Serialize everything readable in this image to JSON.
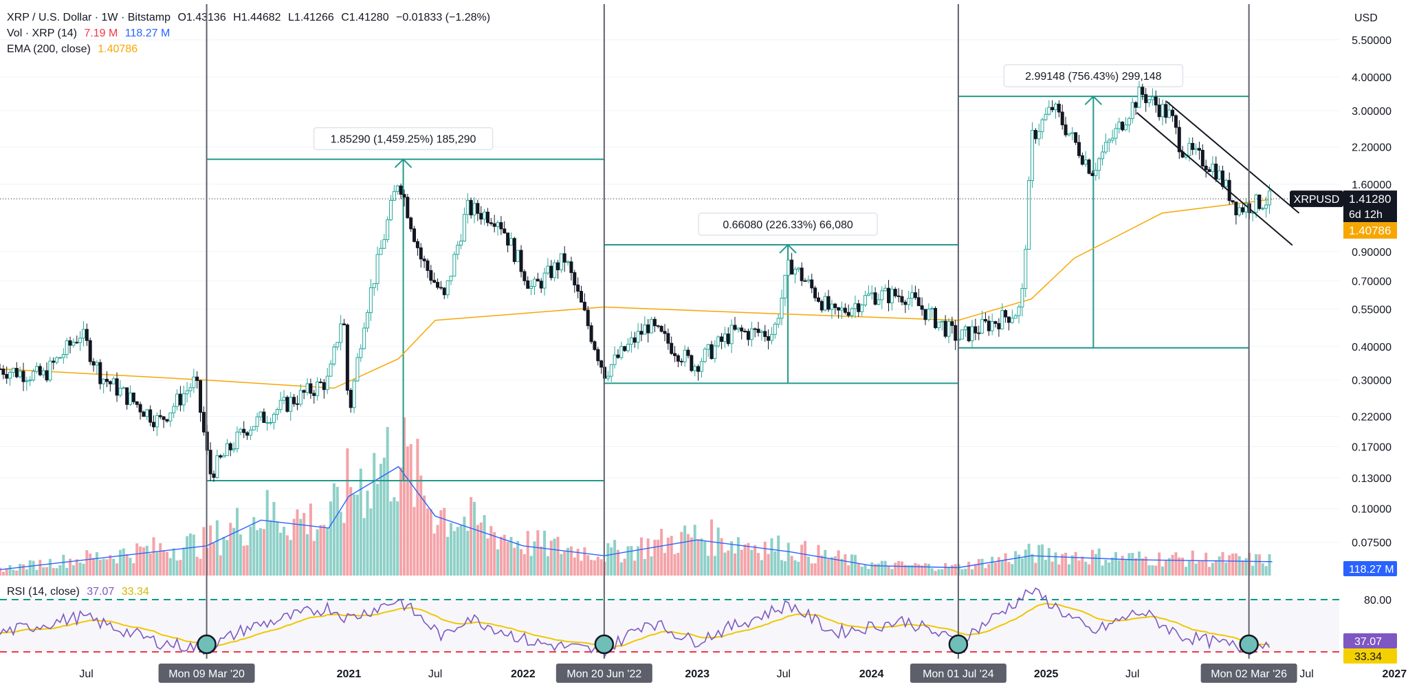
{
  "header": {
    "symbol": "XRP / U.S. Dollar · 1W · Bitstamp",
    "open": "O1.43136",
    "high": "H1.44682",
    "low": "L1.41266",
    "close": "C1.41280",
    "change": "−0.01833 (−1.28%)",
    "vol_label": "Vol · XRP (14)",
    "vol_value_1": "7.19 M",
    "vol_value_2": "118.27 M",
    "ema_label": "EMA (200, close)",
    "ema_value": "1.40786",
    "currency": "USD"
  },
  "rsi_legend": {
    "label": "RSI (14, close)",
    "value": "37.07",
    "ma_value": "33.34"
  },
  "price_tags": {
    "symbol_tag": "XRPUSD",
    "last_price": "1.41280",
    "countdown": "6d 12h",
    "ema_price": "1.40786",
    "volume_tag": "118.27 M",
    "rsi_tag": "37.07",
    "rsi_ma_tag": "33.34"
  },
  "colors": {
    "up": "#26a69a",
    "down": "#131722",
    "measure": "#22998a",
    "ema": "#f7a600",
    "volume_ma": "#2962ff",
    "rsi": "#7e57c2",
    "rsi_ma": "#f0c600",
    "overbought": "#089981",
    "oversold": "#f23645"
  },
  "chart_data": {
    "type": "candlestick",
    "y_scale": "log",
    "y_ticks": [
      "5.50000",
      "4.00000",
      "3.00000",
      "2.20000",
      "1.60000",
      "0.90000",
      "0.70000",
      "0.55000",
      "0.40000",
      "0.30000",
      "0.22000",
      "0.17000",
      "0.13000",
      "0.10000",
      "0.07500"
    ],
    "x_ticks": [
      {
        "label": "Jul",
        "date": "2019-07"
      },
      {
        "label": "2021",
        "date": "2021-01",
        "bold": true
      },
      {
        "label": "Jul",
        "date": "2021-07"
      },
      {
        "label": "2022",
        "date": "2022-01",
        "bold": true
      },
      {
        "label": "2023",
        "date": "2023-01",
        "bold": true
      },
      {
        "label": "Jul",
        "date": "2023-07"
      },
      {
        "label": "2024",
        "date": "2024-01",
        "bold": true
      },
      {
        "label": "2025",
        "date": "2025-01",
        "bold": true
      },
      {
        "label": "Jul",
        "date": "2025-07"
      },
      {
        "label": "Jul",
        "date": "2026-07"
      },
      {
        "label": "2027",
        "date": "2027-01",
        "bold": true
      }
    ],
    "vertical_markers": [
      {
        "label": "Mon 09 Mar '20",
        "date": "2020-03-09"
      },
      {
        "label": "Mon 20 Jun '22",
        "date": "2022-06-20"
      },
      {
        "label": "Mon 01 Jul '24",
        "date": "2024-07-01"
      },
      {
        "label": "Mon 02 Mar '26",
        "date": "2026-03-02"
      }
    ],
    "measurements": [
      {
        "label": "1.85290 (1,459.25%) 185,290",
        "from_date": "2020-03-09",
        "to_date": "2022-06-20",
        "low": 0.127,
        "high": 1.98
      },
      {
        "label": "0.66080 (226.33%) 66,080",
        "from_date": "2022-06-20",
        "to_date": "2024-07-01",
        "low": 0.292,
        "high": 0.953
      },
      {
        "label": "2.99148 (756.43%) 299,148",
        "from_date": "2024-07-01",
        "to_date": "2026-03-02",
        "low": 0.395,
        "high": 3.39
      }
    ],
    "channel": [
      {
        "from": {
          "date": "2025-07-10",
          "price": 2.95
        },
        "to": {
          "date": "2026-06-01",
          "price": 0.95
        }
      },
      {
        "from": {
          "date": "2025-09-10",
          "price": 3.25
        },
        "to": {
          "date": "2026-06-15",
          "price": 1.25
        }
      }
    ],
    "last_price": 1.4128,
    "ema_last": 1.40786,
    "price_path": [
      [
        "2019-01-01",
        0.33
      ],
      [
        "2019-04-01",
        0.31
      ],
      [
        "2019-06-20",
        0.45
      ],
      [
        "2019-08-01",
        0.31
      ],
      [
        "2019-12-01",
        0.21
      ],
      [
        "2020-02-15",
        0.3
      ],
      [
        "2020-03-16",
        0.135
      ],
      [
        "2020-06-01",
        0.2
      ],
      [
        "2020-09-01",
        0.25
      ],
      [
        "2020-11-20",
        0.3
      ],
      [
        "2020-12-20",
        0.55
      ],
      [
        "2021-01-01",
        0.22
      ],
      [
        "2021-02-01",
        0.5
      ],
      [
        "2021-04-15",
        1.7
      ],
      [
        "2021-06-01",
        0.85
      ],
      [
        "2021-07-20",
        0.6
      ],
      [
        "2021-09-05",
        1.3
      ],
      [
        "2021-11-10",
        1.2
      ],
      [
        "2022-01-20",
        0.65
      ],
      [
        "2022-03-30",
        0.85
      ],
      [
        "2022-06-20",
        0.32
      ],
      [
        "2022-09-20",
        0.48
      ],
      [
        "2022-12-25",
        0.34
      ],
      [
        "2023-03-15",
        0.45
      ],
      [
        "2023-06-10",
        0.45
      ],
      [
        "2023-07-14",
        0.82
      ],
      [
        "2023-10-15",
        0.52
      ],
      [
        "2023-12-31",
        0.62
      ],
      [
        "2024-03-12",
        0.62
      ],
      [
        "2024-07-01",
        0.43
      ],
      [
        "2024-11-10",
        0.55
      ],
      [
        "2024-12-03",
        2.4
      ],
      [
        "2025-01-15",
        3.1
      ],
      [
        "2025-04-07",
        1.8
      ],
      [
        "2025-07-18",
        3.5
      ],
      [
        "2025-09-20",
        2.85
      ],
      [
        "2025-10-10",
        2.2
      ],
      [
        "2025-12-20",
        1.85
      ],
      [
        "2026-02-06",
        1.3
      ],
      [
        "2026-04-20",
        1.41
      ]
    ],
    "ema_path": [
      [
        "2019-01-01",
        0.33
      ],
      [
        "2020-03-09",
        0.3
      ],
      [
        "2020-12-01",
        0.28
      ],
      [
        "2021-04-15",
        0.36
      ],
      [
        "2021-07-01",
        0.5
      ],
      [
        "2022-06-20",
        0.56
      ],
      [
        "2023-06-01",
        0.53
      ],
      [
        "2024-07-01",
        0.5
      ],
      [
        "2024-12-01",
        0.6
      ],
      [
        "2025-03-01",
        0.85
      ],
      [
        "2025-09-01",
        1.25
      ],
      [
        "2026-04-20",
        1.40786
      ]
    ],
    "volume_path": [
      [
        "2019-01-01",
        0.03
      ],
      [
        "2020-03-09",
        0.15
      ],
      [
        "2020-07-01",
        0.28
      ],
      [
        "2020-11-20",
        0.24
      ],
      [
        "2021-01-01",
        0.4
      ],
      [
        "2021-04-15",
        0.55
      ],
      [
        "2021-07-01",
        0.3
      ],
      [
        "2022-01-01",
        0.15
      ],
      [
        "2022-06-20",
        0.1
      ],
      [
        "2023-01-01",
        0.18
      ],
      [
        "2023-07-14",
        0.12
      ],
      [
        "2024-01-01",
        0.05
      ],
      [
        "2024-07-01",
        0.04
      ],
      [
        "2024-12-01",
        0.1
      ],
      [
        "2025-07-01",
        0.08
      ],
      [
        "2026-04-20",
        0.07
      ]
    ],
    "rsi_path": [
      [
        "2019-01-01",
        45
      ],
      [
        "2019-06-20",
        62
      ],
      [
        "2019-12-01",
        35
      ],
      [
        "2020-03-09",
        28
      ],
      [
        "2020-06-01",
        50
      ],
      [
        "2020-11-20",
        72
      ],
      [
        "2021-01-01",
        60
      ],
      [
        "2021-04-15",
        80
      ],
      [
        "2021-07-20",
        40
      ],
      [
        "2021-09-05",
        62
      ],
      [
        "2022-01-20",
        35
      ],
      [
        "2022-06-20",
        25
      ],
      [
        "2022-09-20",
        58
      ],
      [
        "2022-12-25",
        36
      ],
      [
        "2023-07-14",
        75
      ],
      [
        "2023-10-15",
        45
      ],
      [
        "2024-03-12",
        58
      ],
      [
        "2024-07-01",
        35
      ],
      [
        "2024-12-03",
        90
      ],
      [
        "2025-04-07",
        45
      ],
      [
        "2025-07-18",
        68
      ],
      [
        "2025-10-10",
        42
      ],
      [
        "2026-03-02",
        28
      ],
      [
        "2026-04-20",
        37.07
      ]
    ],
    "rsi_levels": {
      "overbought": 80,
      "oversold": 25
    }
  }
}
